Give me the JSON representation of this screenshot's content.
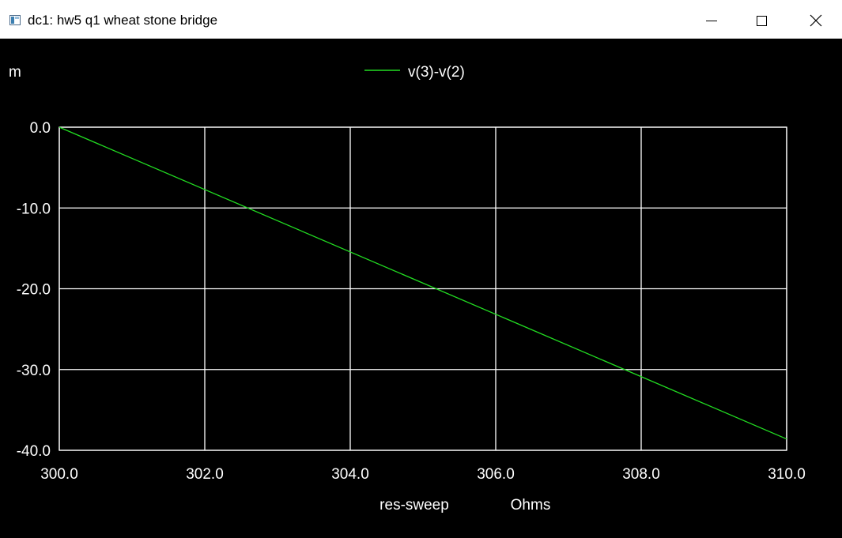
{
  "window": {
    "title": "dc1: hw5 q1 wheat stone bridge",
    "minimize_icon": "minimize-icon",
    "maximize_icon": "maximize-icon",
    "close_icon": "close-icon"
  },
  "colors": {
    "background": "#000000",
    "grid": "#ffffff",
    "text": "#ffffff",
    "series": "#22dd22"
  },
  "chart_data": {
    "type": "line",
    "yunit_prefix": "m",
    "xlabel": "res-sweep",
    "xunit": "Ohms",
    "xlim": [
      300.0,
      310.0
    ],
    "ylim": [
      -40.0,
      0.0
    ],
    "xticks": [
      "300.0",
      "302.0",
      "304.0",
      "306.0",
      "308.0",
      "310.0"
    ],
    "yticks": [
      "0.0",
      "-10.0",
      "-20.0",
      "-30.0",
      "-40.0"
    ],
    "grid": true,
    "legend_position": "top-center",
    "series": [
      {
        "name": "v(3)-v(2)",
        "x": [
          300.0,
          310.0
        ],
        "y": [
          0.0,
          -38.6
        ]
      }
    ]
  }
}
